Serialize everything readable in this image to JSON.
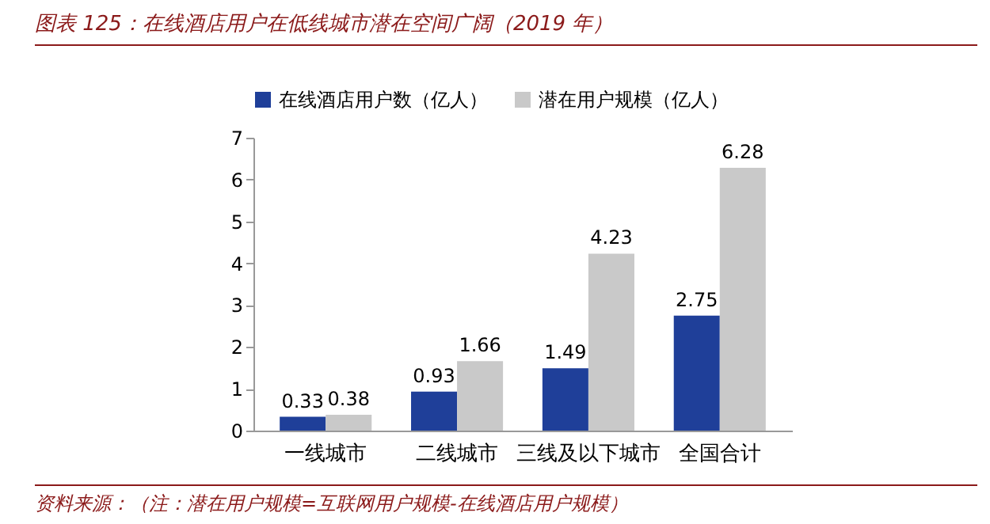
{
  "chart_data": {
    "type": "bar",
    "title": "图表 125：在线酒店用户在低线城市潜在空间广阔（2019 年）",
    "categories": [
      "一线城市",
      "二线城市",
      "三线及以下城市",
      "全国合计"
    ],
    "series": [
      {
        "name": "在线酒店用户数（亿人）",
        "color": "#1f3f99",
        "values": [
          0.33,
          0.93,
          1.49,
          2.75
        ]
      },
      {
        "name": "潜在用户规模（亿人）",
        "color": "#c9c9c9",
        "values": [
          0.38,
          1.66,
          4.23,
          6.28
        ]
      }
    ],
    "ylim": [
      0,
      7
    ],
    "yticks": [
      0,
      1,
      2,
      3,
      4,
      5,
      6,
      7
    ],
    "grid": false,
    "legend": "top",
    "data_labels": true,
    "annotations": [
      "资料来源：（注：潜在用户规模=互联网用户规模-在线酒店用户规模）"
    ]
  }
}
